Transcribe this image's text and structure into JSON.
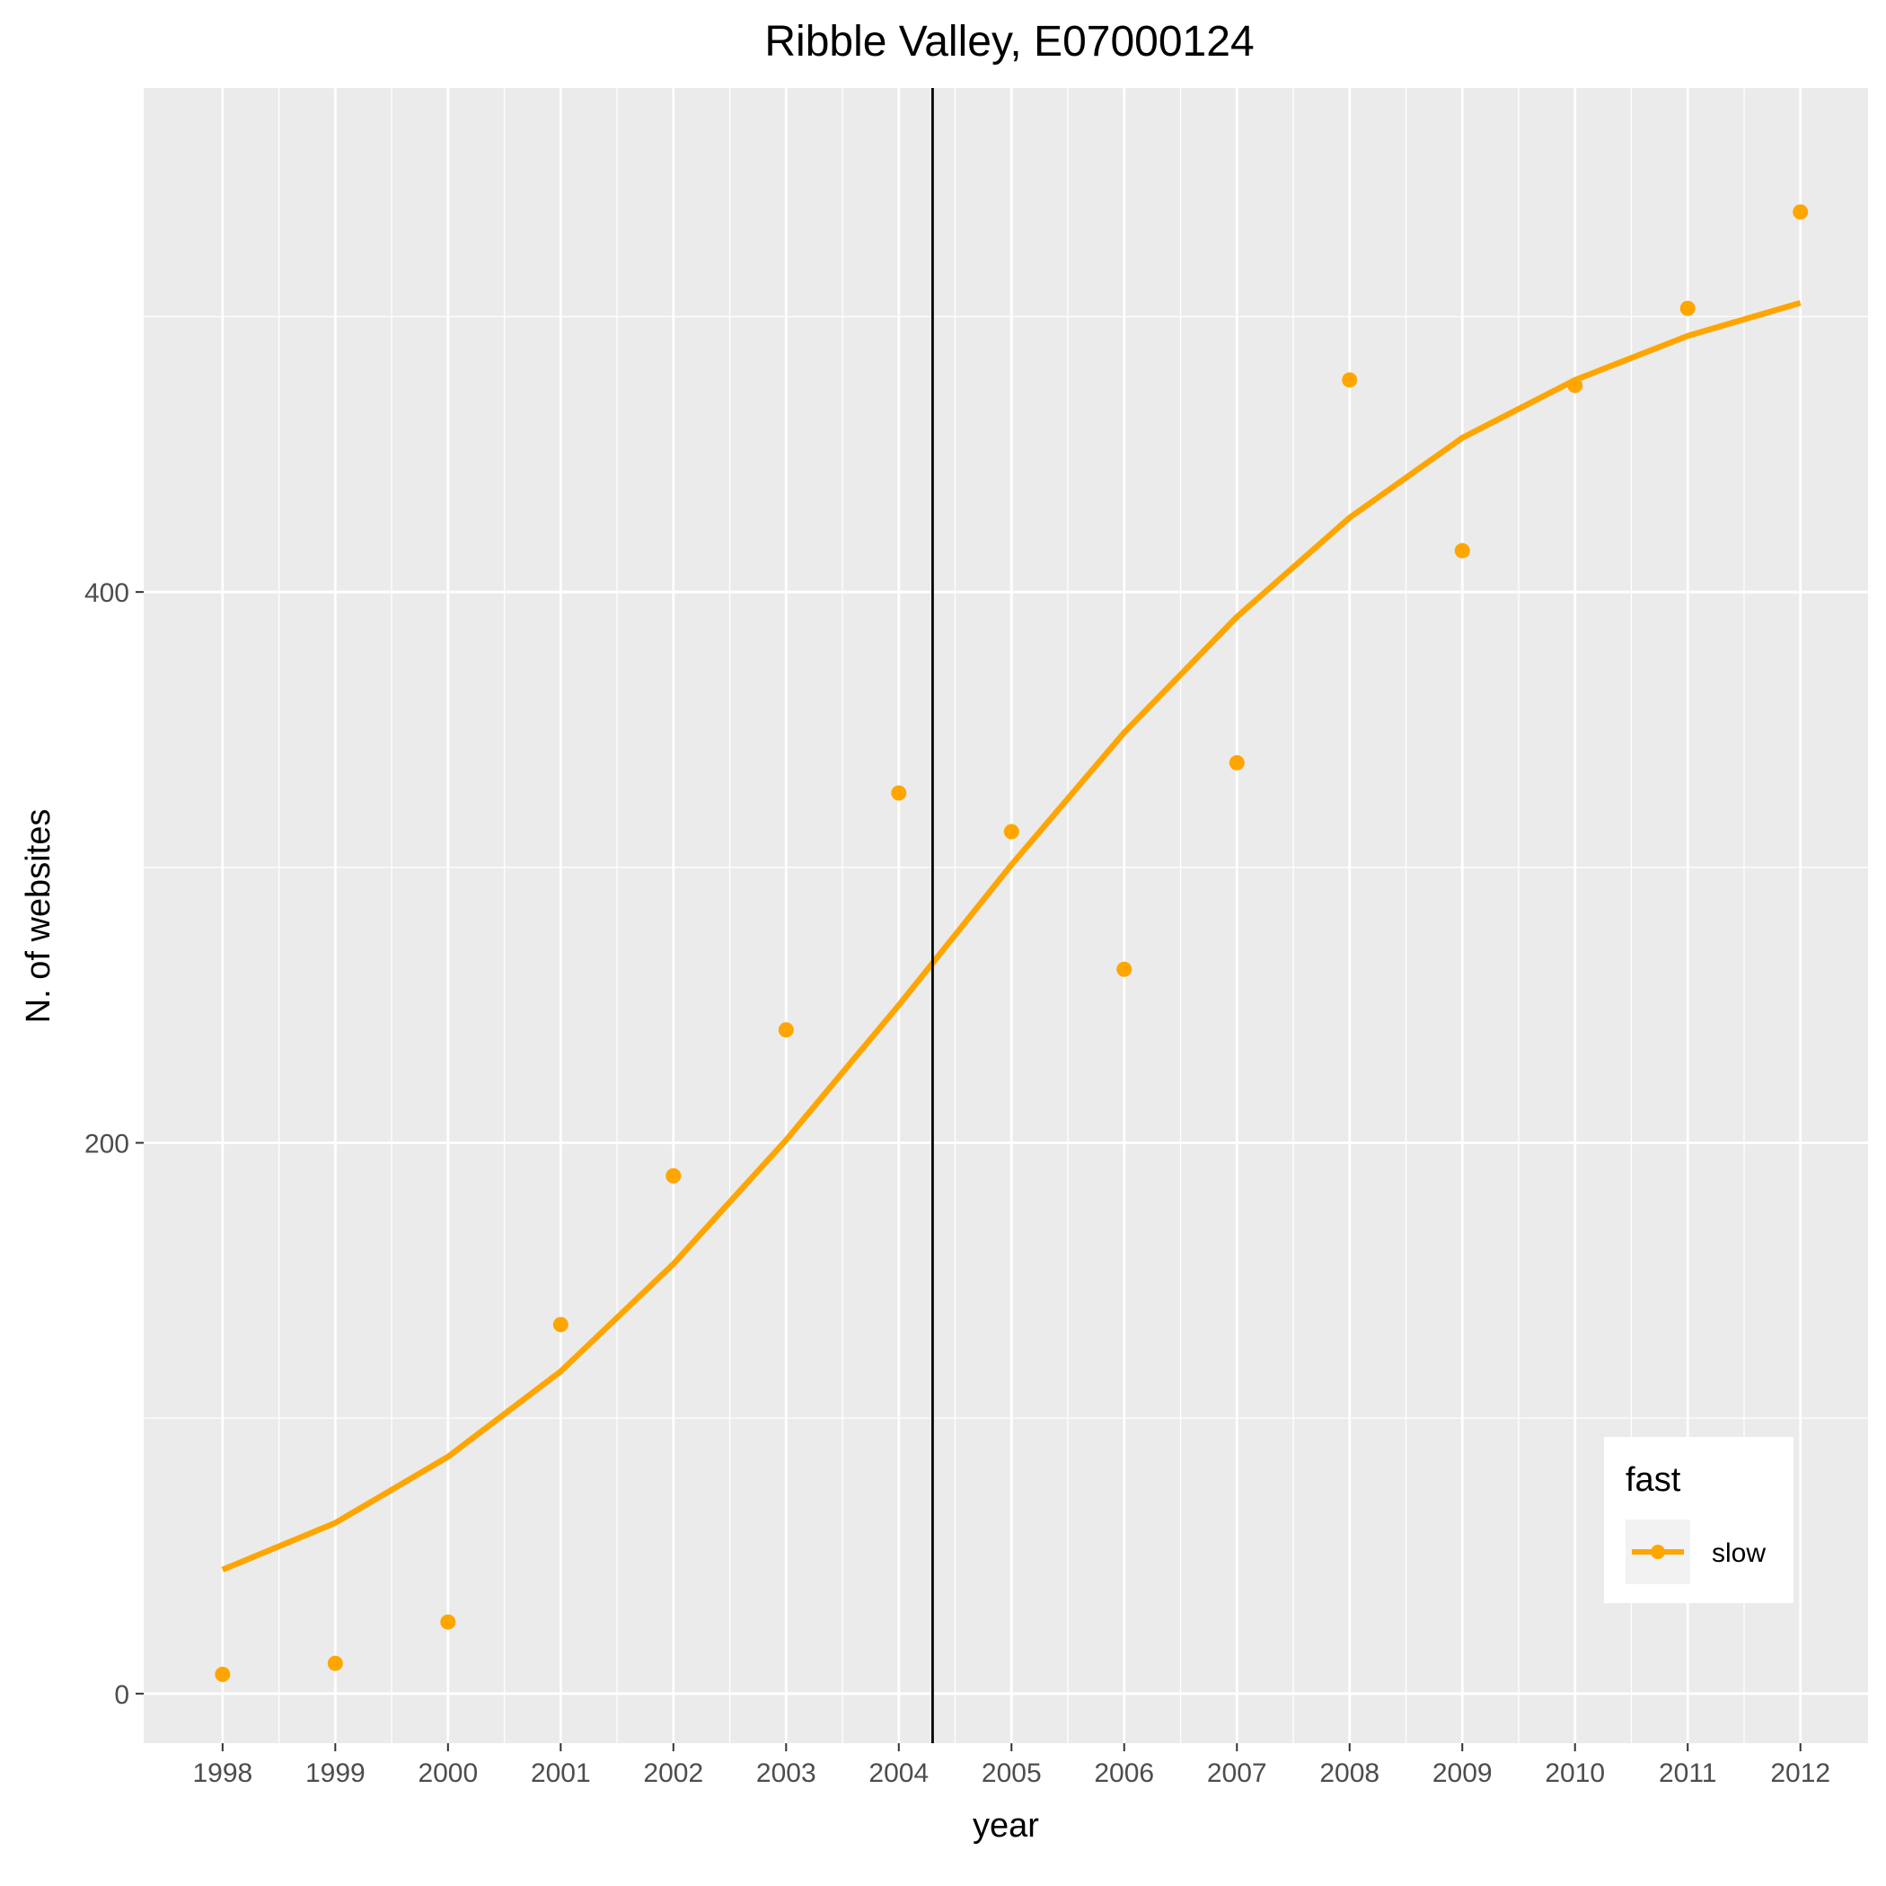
{
  "chart_data": {
    "type": "scatter",
    "title": "Ribble Valley, E07000124",
    "xlabel": "year",
    "ylabel": "N. of websites",
    "x": [
      1998,
      1999,
      2000,
      2001,
      2002,
      2003,
      2004,
      2005,
      2006,
      2007,
      2008,
      2009,
      2010,
      2011,
      2012
    ],
    "x_tick_labels": [
      "1998",
      "1999",
      "2000",
      "2001",
      "2002",
      "2003",
      "2004",
      "2005",
      "2006",
      "2007",
      "2008",
      "2009",
      "2010",
      "2011",
      "2012"
    ],
    "y_ticks": [
      0,
      200,
      400
    ],
    "y_tick_labels": [
      "0",
      "200",
      "400"
    ],
    "xlim": [
      1997.3,
      2012.6
    ],
    "ylim": [
      -18,
      583
    ],
    "series": [
      {
        "name": "slow",
        "points": [
          7,
          11,
          26,
          134,
          188,
          241,
          327,
          313,
          263,
          338,
          477,
          415,
          475,
          503,
          538
        ],
        "trend": [
          45,
          62,
          86,
          117,
          156,
          201,
          250,
          301,
          349,
          391,
          427,
          456,
          477,
          493,
          505
        ]
      }
    ],
    "vline_x": 2004.3,
    "legend": {
      "title": "fast",
      "entries": [
        "slow"
      ],
      "position": "bottom-right"
    },
    "colors": {
      "series": "#ffa500",
      "panel": "#ebebeb",
      "grid": "#ffffff",
      "vline": "#000000"
    },
    "grid": true
  }
}
